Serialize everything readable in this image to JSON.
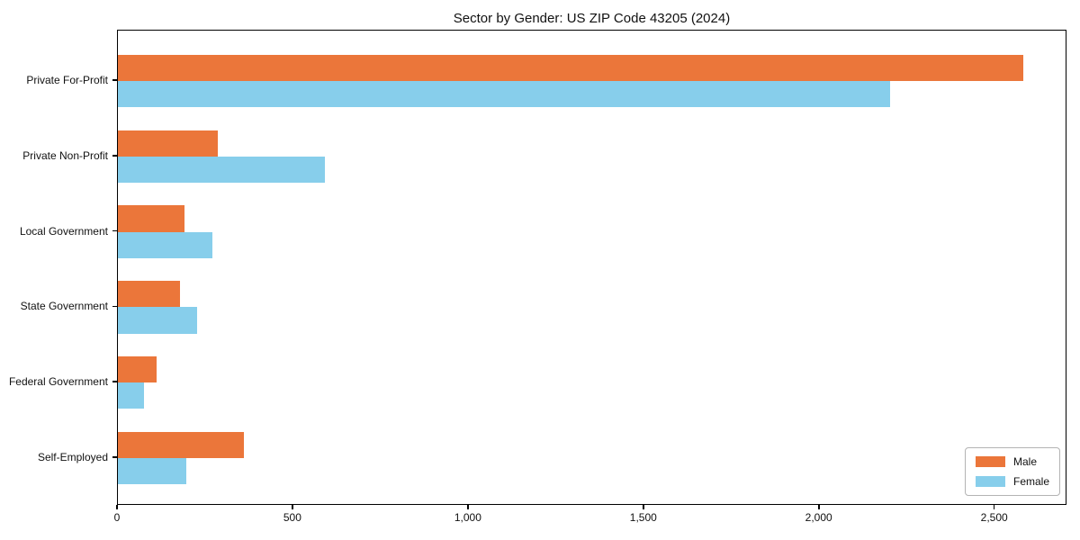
{
  "chart_data": {
    "type": "bar",
    "orientation": "horizontal",
    "title": "Sector by Gender: US ZIP Code 43205 (2024)",
    "xlabel": "",
    "ylabel": "",
    "categories": [
      "Private For-Profit",
      "Private Non-Profit",
      "Local Government",
      "State Government",
      "Federal Government",
      "Self-Employed"
    ],
    "series": [
      {
        "name": "Male",
        "color": "#eb763a",
        "values": [
          2580,
          285,
          190,
          178,
          110,
          360
        ]
      },
      {
        "name": "Female",
        "color": "#87ceeb",
        "values": [
          2200,
          590,
          270,
          225,
          75,
          195
        ]
      }
    ],
    "xlim": [
      0,
      2706
    ],
    "xticks": [
      0,
      500,
      1000,
      1500,
      2000,
      2500
    ],
    "xtick_labels": [
      "0",
      "500",
      "1,000",
      "1,500",
      "2,000",
      "2,500"
    ],
    "grid": false,
    "legend_position": "lower right",
    "frame_color": "#000000",
    "background_color": "#ffffff"
  }
}
